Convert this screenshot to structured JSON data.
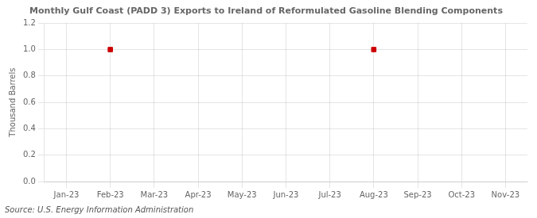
{
  "chart_data": {
    "type": "scatter",
    "title": "Monthly Gulf Coast (PADD 3) Exports to Ireland of Reformulated Gasoline Blending Components",
    "ylabel": "Thousand Barrels",
    "source": "Source: U.S. Energy Information Administration",
    "categories": [
      "Jan-23",
      "Feb-23",
      "Mar-23",
      "Apr-23",
      "May-23",
      "Jun-23",
      "Jul-23",
      "Aug-23",
      "Sep-23",
      "Oct-23",
      "Nov-23"
    ],
    "values": [
      null,
      1.0,
      null,
      null,
      null,
      null,
      null,
      1.0,
      null,
      null,
      null
    ],
    "color": "#cc0000",
    "marker": "square",
    "ylim": [
      0.0,
      1.2
    ],
    "yticks": [
      {
        "value": 0,
        "label": "0.0"
      },
      0.2,
      0.4,
      0.6,
      0.8,
      {
        "value": 1,
        "label": "1.0"
      },
      1.2
    ],
    "grid": true
  }
}
